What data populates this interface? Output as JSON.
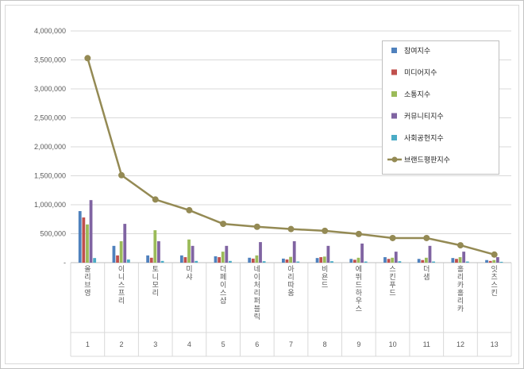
{
  "chart": {
    "background": "#FFFFFF",
    "outer_border_color": "#C3C3C3",
    "inner_border_color": "#D9D9D9",
    "gridline_color": "#D9D9D9",
    "axis_line_color": "#BFBFBF",
    "axis_text_color": "#595959",
    "legend_border_color": "#BFBFBF"
  },
  "chart_data": {
    "type": "bar+line",
    "title": "",
    "xlabel": "",
    "ylabel": "",
    "grid": true,
    "legend_position": "upper-right",
    "categories": [
      "올리브영",
      "이니스프리",
      "토니모리",
      "미샤",
      "더페이스샵",
      "네이처리퍼블릭",
      "아리따움",
      "비욘드",
      "에뛰드하우스",
      "스킨푸드",
      "더샘",
      "홀리카홀리카",
      "잇츠스킨"
    ],
    "category_numbers": [
      "1",
      "2",
      "3",
      "4",
      "5",
      "6",
      "7",
      "8",
      "9",
      "10",
      "11",
      "12",
      "13"
    ],
    "y_axis": {
      "min": 0,
      "max": 4000000,
      "step": 500000,
      "tick_labels": [
        "-",
        "500,000",
        "1,000,000",
        "1,500,000",
        "2,000,000",
        "2,500,000",
        "3,000,000",
        "3,500,000",
        "4,000,000"
      ]
    },
    "series": [
      {
        "name": "참여지수",
        "type": "bar",
        "color": "#4F81BD",
        "values": [
          890000,
          290000,
          125000,
          125000,
          110000,
          85000,
          70000,
          80000,
          65000,
          95000,
          65000,
          80000,
          45000
        ]
      },
      {
        "name": "미디어지수",
        "type": "bar",
        "color": "#C0504D",
        "values": [
          780000,
          125000,
          85000,
          95000,
          95000,
          70000,
          55000,
          95000,
          50000,
          65000,
          45000,
          65000,
          30000
        ]
      },
      {
        "name": "소통지수",
        "type": "bar",
        "color": "#9BBB59",
        "values": [
          660000,
          370000,
          560000,
          400000,
          190000,
          125000,
          100000,
          105000,
          85000,
          85000,
          85000,
          95000,
          45000
        ]
      },
      {
        "name": "커뮤니티지수",
        "type": "bar",
        "color": "#8064A2",
        "values": [
          1080000,
          670000,
          370000,
          290000,
          290000,
          355000,
          370000,
          290000,
          330000,
          190000,
          290000,
          190000,
          95000
        ]
      },
      {
        "name": "사회공헌지수",
        "type": "bar",
        "color": "#4BACC6",
        "values": [
          80000,
          55000,
          30000,
          30000,
          30000,
          25000,
          20000,
          25000,
          20000,
          25000,
          20000,
          20000,
          15000
        ]
      },
      {
        "name": "브랜드평판지수",
        "type": "line",
        "color": "#948A54",
        "values": [
          3530000,
          1510000,
          1090000,
          905000,
          670000,
          620000,
          580000,
          550000,
          495000,
          425000,
          425000,
          300000,
          140000
        ]
      }
    ]
  }
}
